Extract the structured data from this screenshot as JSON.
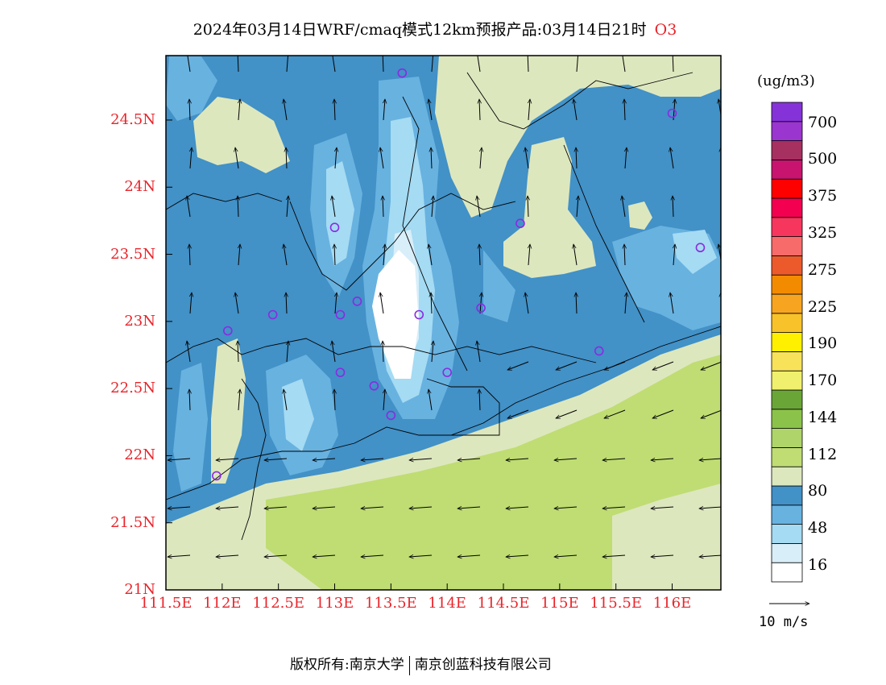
{
  "title": {
    "main": "2024年03月14日WRF/cmaq模式12km预报产品:03月14日21时",
    "pollutant": "O3"
  },
  "lat_labels": [
    "24.5N",
    "24N",
    "23.5N",
    "23N",
    "22.5N",
    "22N",
    "21.5N",
    "21N"
  ],
  "lon_labels": [
    "111.5E",
    "112E",
    "112.5E",
    "113E",
    "113.5E",
    "114E",
    "114.5E",
    "115E",
    "115.5E",
    "116E"
  ],
  "colorbar": {
    "unit": "(ug/m3)",
    "labels": [
      "700",
      "500",
      "375",
      "325",
      "275",
      "225",
      "190",
      "170",
      "144",
      "112",
      "80",
      "48",
      "16"
    ],
    "colors": [
      "#ffffff",
      "#d8eef9",
      "#a5dbf3",
      "#68b2e0",
      "#4291c7",
      "#dde7be",
      "#bfdd73",
      "#afd46a",
      "#8bc34a",
      "#6aa637",
      "#f0f06e",
      "#f7e25a",
      "#fff000",
      "#f8c22a",
      "#f7a520",
      "#f38b00",
      "#ec5a2b",
      "#f86b6b",
      "#f7365e",
      "#f30050",
      "#ff0000",
      "#c8146e",
      "#a63060",
      "#9b35cf",
      "#8533d8"
    ]
  },
  "wind_legend": {
    "speed_label": "10 m/s"
  },
  "footer": {
    "rights": "版权所有:南京大学",
    "company": "南京创蓝科技有限公司"
  },
  "map": {
    "stations": [
      {
        "lon": 113.6,
        "lat": 24.85
      },
      {
        "lon": 116.0,
        "lat": 24.55
      },
      {
        "lon": 113.0,
        "lat": 23.7
      },
      {
        "lon": 114.65,
        "lat": 23.73
      },
      {
        "lon": 116.25,
        "lat": 23.55
      },
      {
        "lon": 112.45,
        "lat": 23.05
      },
      {
        "lon": 113.05,
        "lat": 23.05
      },
      {
        "lon": 113.2,
        "lat": 23.15
      },
      {
        "lon": 113.75,
        "lat": 23.05
      },
      {
        "lon": 114.3,
        "lat": 23.1
      },
      {
        "lon": 112.05,
        "lat": 22.93
      },
      {
        "lon": 115.35,
        "lat": 22.78
      },
      {
        "lon": 113.05,
        "lat": 22.62
      },
      {
        "lon": 113.35,
        "lat": 22.52
      },
      {
        "lon": 114.0,
        "lat": 22.62
      },
      {
        "lon": 113.5,
        "lat": 22.3
      },
      {
        "lon": 111.95,
        "lat": 21.85
      }
    ]
  }
}
